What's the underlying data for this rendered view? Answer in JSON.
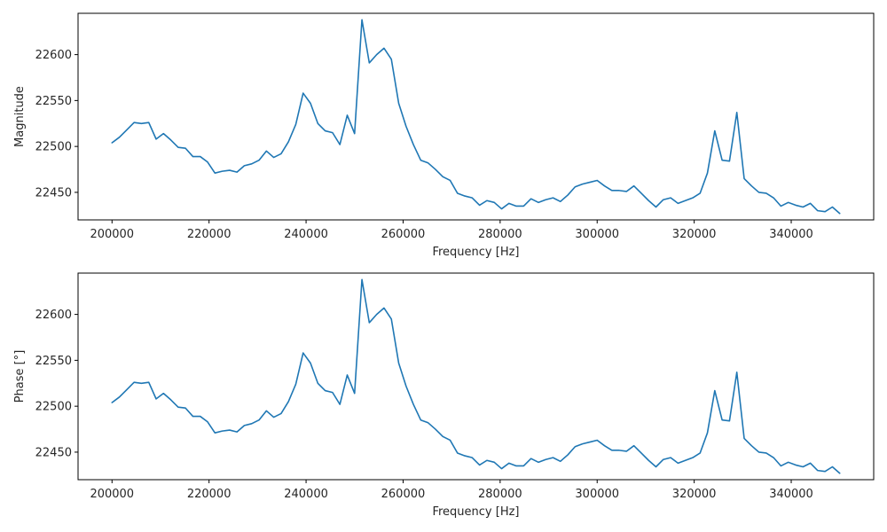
{
  "chart_data": [
    {
      "type": "line",
      "xlabel": "Frequency [Hz]",
      "ylabel": "Magnitude",
      "xlim": [
        193000,
        357000
      ],
      "ylim": [
        22420,
        22645
      ],
      "xticks": [
        200000,
        220000,
        240000,
        260000,
        280000,
        300000,
        320000,
        340000
      ],
      "yticks": [
        22450,
        22500,
        22550,
        22600
      ],
      "grid": false,
      "legend": "none",
      "series": [
        {
          "color": "#1f77b4",
          "x": [
            200000,
            201515,
            203030,
            204545,
            206061,
            207576,
            209091,
            210606,
            212121,
            213636,
            215152,
            216667,
            218182,
            219697,
            221212,
            222727,
            224242,
            225758,
            227273,
            228788,
            230303,
            231818,
            233333,
            234848,
            236364,
            237879,
            239394,
            240909,
            242424,
            243939,
            245455,
            246970,
            248485,
            250000,
            251515,
            253030,
            254545,
            256061,
            257576,
            259091,
            260606,
            262121,
            263636,
            265152,
            266667,
            268182,
            269697,
            271212,
            272727,
            274242,
            275758,
            277273,
            278788,
            280303,
            281818,
            283333,
            284848,
            286364,
            287879,
            289394,
            290909,
            292424,
            293939,
            295455,
            296970,
            298485,
            300000,
            301515,
            303030,
            304545,
            306061,
            307576,
            309091,
            310606,
            312121,
            313636,
            315152,
            316667,
            318182,
            319697,
            321212,
            322727,
            324242,
            325758,
            327273,
            328788,
            330303,
            331818,
            333333,
            334848,
            336364,
            337879,
            339394,
            340909,
            342424,
            343939,
            345455,
            346970,
            348485,
            350000
          ],
          "y": [
            22504,
            22510,
            22518,
            22526,
            22525,
            22526,
            22508,
            22514,
            22507,
            22499,
            22498,
            22489,
            22489,
            22483,
            22471,
            22473,
            22474,
            22472,
            22479,
            22481,
            22485,
            22495,
            22488,
            22492,
            22505,
            22524,
            22558,
            22547,
            22525,
            22517,
            22515,
            22502,
            22534,
            22514,
            22638,
            22591,
            22600,
            22607,
            22595,
            22547,
            22522,
            22502,
            22485,
            22482,
            22475,
            22467,
            22463,
            22449,
            22446,
            22444,
            22436,
            22441,
            22439,
            22432,
            22438,
            22435,
            22435,
            22443,
            22439,
            22442,
            22444,
            22440,
            22447,
            22456,
            22459,
            22461,
            22463,
            22457,
            22452,
            22452,
            22451,
            22457,
            22449,
            22441,
            22434,
            22442,
            22444,
            22438,
            22441,
            22444,
            22449,
            22471,
            22517,
            22485,
            22484,
            22537,
            22465,
            22457,
            22450,
            22449,
            22444,
            22435,
            22439,
            22436,
            22434,
            22438,
            22430,
            22429,
            22434,
            22427
          ]
        }
      ]
    },
    {
      "type": "line",
      "xlabel": "Frequency [Hz]",
      "ylabel": "Phase [°]",
      "xlim": [
        193000,
        357000
      ],
      "ylim": [
        22420,
        22645
      ],
      "xticks": [
        200000,
        220000,
        240000,
        260000,
        280000,
        300000,
        320000,
        340000
      ],
      "yticks": [
        22450,
        22500,
        22550,
        22600
      ],
      "grid": false,
      "legend": "none",
      "series": [
        {
          "color": "#1f77b4",
          "x": [
            200000,
            201515,
            203030,
            204545,
            206061,
            207576,
            209091,
            210606,
            212121,
            213636,
            215152,
            216667,
            218182,
            219697,
            221212,
            222727,
            224242,
            225758,
            227273,
            228788,
            230303,
            231818,
            233333,
            234848,
            236364,
            237879,
            239394,
            240909,
            242424,
            243939,
            245455,
            246970,
            248485,
            250000,
            251515,
            253030,
            254545,
            256061,
            257576,
            259091,
            260606,
            262121,
            263636,
            265152,
            266667,
            268182,
            269697,
            271212,
            272727,
            274242,
            275758,
            277273,
            278788,
            280303,
            281818,
            283333,
            284848,
            286364,
            287879,
            289394,
            290909,
            292424,
            293939,
            295455,
            296970,
            298485,
            300000,
            301515,
            303030,
            304545,
            306061,
            307576,
            309091,
            310606,
            312121,
            313636,
            315152,
            316667,
            318182,
            319697,
            321212,
            322727,
            324242,
            325758,
            327273,
            328788,
            330303,
            331818,
            333333,
            334848,
            336364,
            337879,
            339394,
            340909,
            342424,
            343939,
            345455,
            346970,
            348485,
            350000
          ],
          "y": [
            22504,
            22510,
            22518,
            22526,
            22525,
            22526,
            22508,
            22514,
            22507,
            22499,
            22498,
            22489,
            22489,
            22483,
            22471,
            22473,
            22474,
            22472,
            22479,
            22481,
            22485,
            22495,
            22488,
            22492,
            22505,
            22524,
            22558,
            22547,
            22525,
            22517,
            22515,
            22502,
            22534,
            22514,
            22638,
            22591,
            22600,
            22607,
            22595,
            22547,
            22522,
            22502,
            22485,
            22482,
            22475,
            22467,
            22463,
            22449,
            22446,
            22444,
            22436,
            22441,
            22439,
            22432,
            22438,
            22435,
            22435,
            22443,
            22439,
            22442,
            22444,
            22440,
            22447,
            22456,
            22459,
            22461,
            22463,
            22457,
            22452,
            22452,
            22451,
            22457,
            22449,
            22441,
            22434,
            22442,
            22444,
            22438,
            22441,
            22444,
            22449,
            22471,
            22517,
            22485,
            22484,
            22537,
            22465,
            22457,
            22450,
            22449,
            22444,
            22435,
            22439,
            22436,
            22434,
            22438,
            22430,
            22429,
            22434,
            22427
          ]
        }
      ]
    }
  ]
}
